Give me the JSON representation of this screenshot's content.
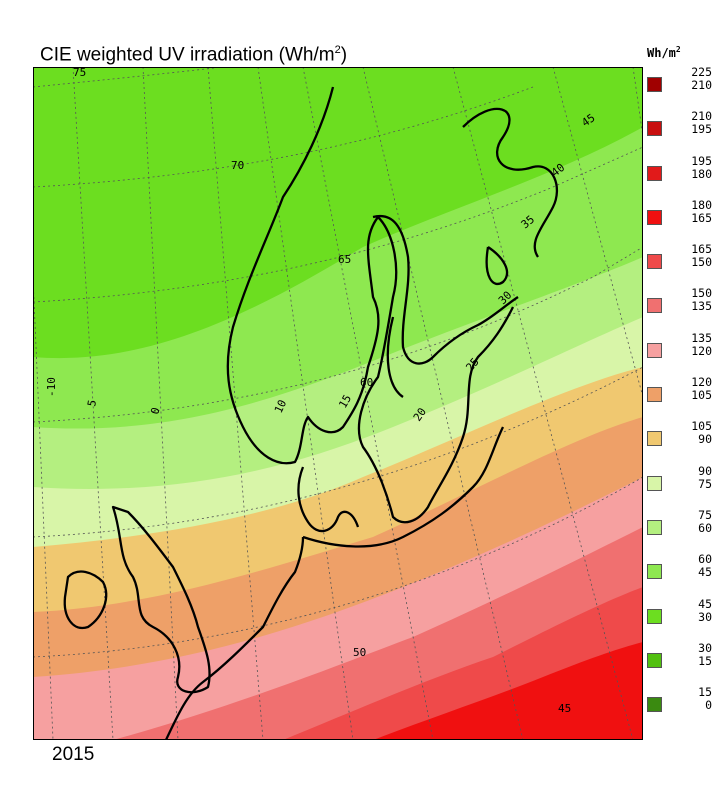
{
  "title": "CIE weighted UV irradiation (Wh/m",
  "title_sup": "2",
  "title_end": ")",
  "year": "2015",
  "legend": {
    "unit": "Wh/m",
    "unit_sup": "2",
    "bins": [
      {
        "hi": "225",
        "lo": "210",
        "color": "#a00000"
      },
      {
        "hi": "210",
        "lo": "195",
        "color": "#c80f0f"
      },
      {
        "hi": "195",
        "lo": "180",
        "color": "#e11a1a"
      },
      {
        "hi": "180",
        "lo": "165",
        "color": "#f01010"
      },
      {
        "hi": "165",
        "lo": "150",
        "color": "#ef4a4a"
      },
      {
        "hi": "150",
        "lo": "135",
        "color": "#f07070"
      },
      {
        "hi": "135",
        "lo": "120",
        "color": "#f6a0a0"
      },
      {
        "hi": "120",
        "lo": "105",
        "color": "#eea068"
      },
      {
        "hi": "105",
        "lo": "90",
        "color": "#f0c870"
      },
      {
        "hi": "90",
        "lo": "75",
        "color": "#d8f5a8"
      },
      {
        "hi": "75",
        "lo": "60",
        "color": "#b4ef80"
      },
      {
        "hi": "60",
        "lo": "45",
        "color": "#8ee850"
      },
      {
        "hi": "45",
        "lo": "30",
        "color": "#6cde20"
      },
      {
        "hi": "30",
        "lo": "15",
        "color": "#52c010"
      },
      {
        "hi": "15",
        "lo": "0",
        "color": "#3a8a10"
      }
    ]
  },
  "graticule": {
    "latitudes": [
      "75",
      "70",
      "65",
      "60",
      "50",
      "45"
    ],
    "longitudes": [
      "-10",
      "5",
      "0",
      "10",
      "15",
      "20",
      "25",
      "30",
      "35",
      "40",
      "45"
    ]
  }
}
